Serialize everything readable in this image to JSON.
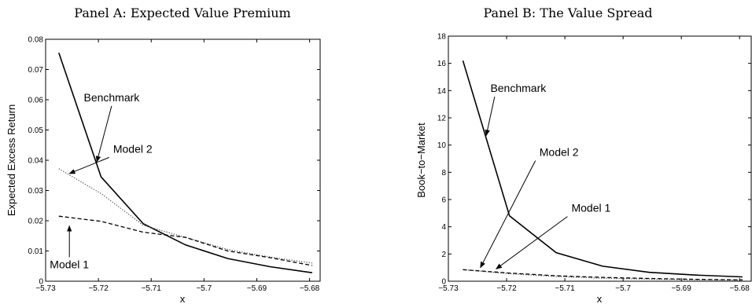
{
  "chart_data": [
    {
      "type": "line",
      "title": "Panel A: Expected Value Premium",
      "xlabel": "x",
      "ylabel": "Expected Excess Return",
      "xlim": [
        -5.73,
        -5.678
      ],
      "ylim": [
        0,
        0.08
      ],
      "xticks": [
        -5.73,
        -5.72,
        -5.71,
        -5.7,
        -5.69,
        -5.68
      ],
      "xtick_labels": [
        "−5.73",
        "−5.72",
        "−5.71",
        "−5.7",
        "−5.69",
        "−5.68"
      ],
      "yticks": [
        0,
        0.01,
        0.02,
        0.03,
        0.04,
        0.05,
        0.06,
        0.07,
        0.08
      ],
      "ytick_labels": [
        "0",
        "0.01",
        "0.02",
        "0.03",
        "0.04",
        "0.05",
        "0.06",
        "0.07",
        "0.08"
      ],
      "grid": false,
      "series": [
        {
          "name": "Benchmark",
          "style": "solid",
          "color": "#000000",
          "x": [
            -5.7275,
            -5.7195,
            -5.7115,
            -5.7035,
            -5.6955,
            -5.6875,
            -5.6795
          ],
          "y": [
            0.0755,
            0.0345,
            0.019,
            0.012,
            0.0075,
            0.0048,
            0.0028
          ]
        },
        {
          "name": "Model 2",
          "style": "dotted",
          "color": "#555555",
          "x": [
            -5.7275,
            -5.7195,
            -5.7115,
            -5.7035,
            -5.6955,
            -5.6875,
            -5.6795
          ],
          "y": [
            0.0372,
            0.029,
            0.0185,
            0.0145,
            0.0105,
            0.008,
            0.006
          ]
        },
        {
          "name": "Model 1",
          "style": "dashed",
          "color": "#000000",
          "x": [
            -5.7275,
            -5.7195,
            -5.7115,
            -5.7035,
            -5.6955,
            -5.6875,
            -5.6795
          ],
          "y": [
            0.0215,
            0.0198,
            0.0162,
            0.0145,
            0.01,
            0.0078,
            0.0052
          ]
        }
      ],
      "annotations": [
        {
          "text": "Benchmark",
          "text_at": [
            -5.7175,
            0.0595
          ],
          "arrow_to": [
            -5.7203,
            0.0395
          ]
        },
        {
          "text": "Model 2",
          "text_at": [
            -5.7135,
            0.0425
          ],
          "arrow_to": [
            -5.7255,
            0.0356
          ]
        },
        {
          "text": "Model 1",
          "text_at": [
            -5.7255,
            0.0043
          ],
          "arrow_to": [
            -5.7255,
            0.0183
          ]
        }
      ]
    },
    {
      "type": "line",
      "title": "Panel B: The Value Spread",
      "xlabel": "x",
      "ylabel": "Book−to−Market",
      "xlim": [
        -5.73,
        -5.678
      ],
      "ylim": [
        0,
        18
      ],
      "xticks": [
        -5.73,
        -5.72,
        -5.71,
        -5.7,
        -5.69,
        -5.68
      ],
      "xtick_labels": [
        "−5.73",
        "−5.72",
        "−5.71",
        "−5.7",
        "−5.69",
        "−5.68"
      ],
      "yticks": [
        0,
        2,
        4,
        6,
        8,
        10,
        12,
        14,
        16,
        18
      ],
      "ytick_labels": [
        "0",
        "2",
        "4",
        "6",
        "8",
        "10",
        "12",
        "14",
        "16",
        "18"
      ],
      "grid": false,
      "series": [
        {
          "name": "Benchmark",
          "style": "solid",
          "color": "#000000",
          "x": [
            -5.7275,
            -5.7195,
            -5.7115,
            -5.7035,
            -5.6955,
            -5.6875,
            -5.6795
          ],
          "y": [
            16.2,
            4.8,
            2.1,
            1.1,
            0.65,
            0.45,
            0.32
          ]
        },
        {
          "name": "Model 2",
          "style": "dotted",
          "color": "#555555",
          "x": [
            -5.7275,
            -5.7195,
            -5.7115,
            -5.7035,
            -5.6955,
            -5.6875,
            -5.6795
          ],
          "y": [
            0.85,
            0.55,
            0.35,
            0.22,
            0.15,
            0.1,
            0.08
          ]
        },
        {
          "name": "Model 1",
          "style": "dashed",
          "color": "#000000",
          "x": [
            -5.7275,
            -5.7195,
            -5.7115,
            -5.7035,
            -5.6955,
            -5.6875,
            -5.6795
          ],
          "y": [
            0.85,
            0.6,
            0.4,
            0.28,
            0.2,
            0.14,
            0.1
          ]
        }
      ],
      "annotations": [
        {
          "text": "Benchmark",
          "text_at": [
            -5.718,
            13.9
          ],
          "arrow_to": [
            -5.7235,
            10.7
          ]
        },
        {
          "text": "Model 2",
          "text_at": [
            -5.711,
            9.2
          ],
          "arrow_to": [
            -5.7245,
            1.0
          ]
        },
        {
          "text": "Model 1",
          "text_at": [
            -5.7055,
            5.1
          ],
          "arrow_to": [
            -5.7218,
            0.9
          ]
        }
      ]
    }
  ]
}
